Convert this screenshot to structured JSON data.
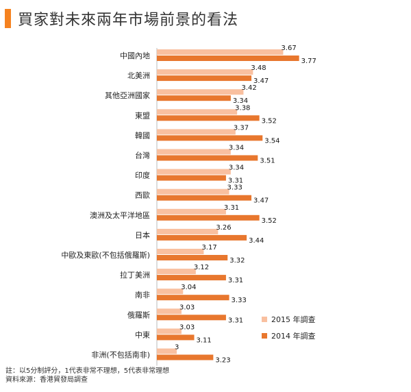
{
  "title": "買家對未來兩年市場前景的看法",
  "colors": {
    "accent": "#f58220",
    "series_2015": "#f9c0a0",
    "series_2014": "#e8772e"
  },
  "chart_data": {
    "type": "bar",
    "orientation": "horizontal",
    "title": "買家對未來兩年市場前景的看法",
    "categories": [
      "中國內地",
      "北美洲",
      "其他亞洲國家",
      "東盟",
      "韓國",
      "台灣",
      "印度",
      "西歐",
      "澳洲及太平洋地區",
      "日本",
      "中歐及東歐(不包括俄羅斯)",
      "拉丁美洲",
      "南非",
      "俄羅斯",
      "中東",
      "非洲(不包括南非)"
    ],
    "series": [
      {
        "name": "2015 年調查",
        "values": [
          3.67,
          3.48,
          3.42,
          3.38,
          3.37,
          3.34,
          3.34,
          3.33,
          3.31,
          3.26,
          3.17,
          3.12,
          3.04,
          3.03,
          3.03,
          3
        ]
      },
      {
        "name": "2014 年調查",
        "values": [
          3.77,
          3.47,
          3.34,
          3.52,
          3.54,
          3.51,
          3.31,
          3.47,
          3.52,
          3.44,
          3.32,
          3.31,
          3.33,
          3.31,
          3.11,
          3.23
        ]
      }
    ],
    "value_labels": {
      "2015": [
        "3.67",
        "3.48",
        "3.42",
        "3.38",
        "3.37",
        "3.34",
        "3.34",
        "3.33",
        "3.31",
        "3.26",
        "3.17",
        "3.12",
        "3.04",
        "3.03",
        "3.03",
        "3"
      ],
      "2014": [
        "3.77",
        "3.47",
        "3.34",
        "3.52",
        "3.54",
        "3.51",
        "3.31",
        "3.47",
        "3.52",
        "3.44",
        "3.32",
        "3.31",
        "3.33",
        "3.31",
        "3.11",
        "3.23"
      ]
    },
    "xlim": [
      2.875,
      3.77
    ],
    "grid": false,
    "legend_position": "bottom-right"
  },
  "notes": {
    "line1": "註：以5分制評分，1代表非常不理想，5代表非常理想",
    "line2": "資料來源：香港貿發局調查"
  }
}
